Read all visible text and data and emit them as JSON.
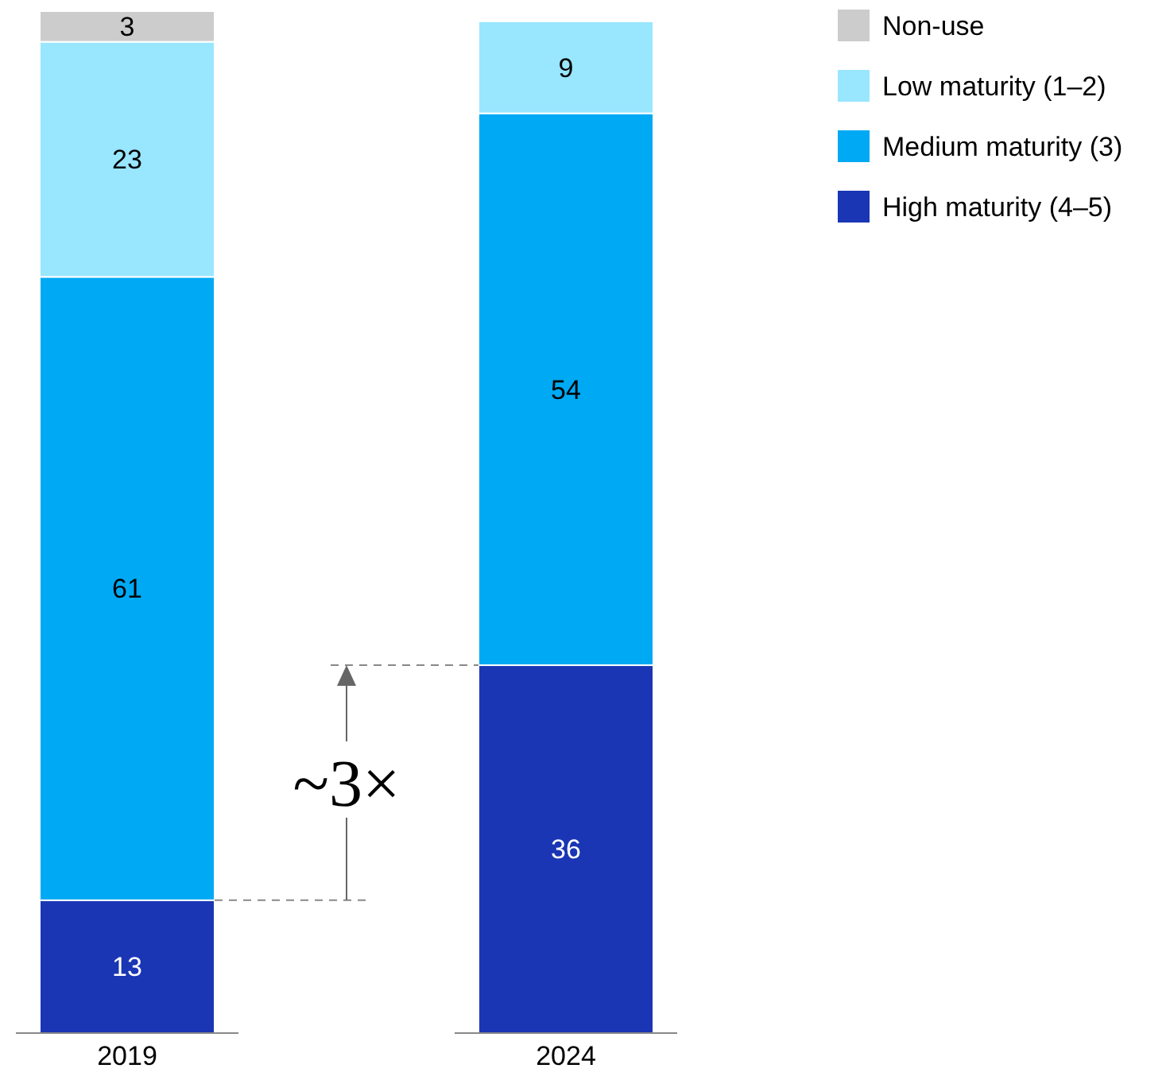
{
  "chart_data": {
    "type": "bar",
    "stacked": true,
    "categories": [
      "2019",
      "2024"
    ],
    "ylim": [
      0,
      100
    ],
    "data_labels": true,
    "legend": "top right",
    "tick_labels": "x",
    "series": [
      {
        "name": "High maturity (4–5)",
        "color": "#1a36b4",
        "values": [
          13,
          36
        ]
      },
      {
        "name": "Medium maturity (3)",
        "color": "#00a9f4",
        "values": [
          61,
          54
        ]
      },
      {
        "name": "Low maturity (1–2)",
        "color": "#99e6ff",
        "values": [
          23,
          9
        ]
      },
      {
        "name": "Non-use",
        "color": "#cccccc",
        "values": [
          3,
          null
        ]
      }
    ],
    "annotations": [
      "~3×"
    ]
  }
}
